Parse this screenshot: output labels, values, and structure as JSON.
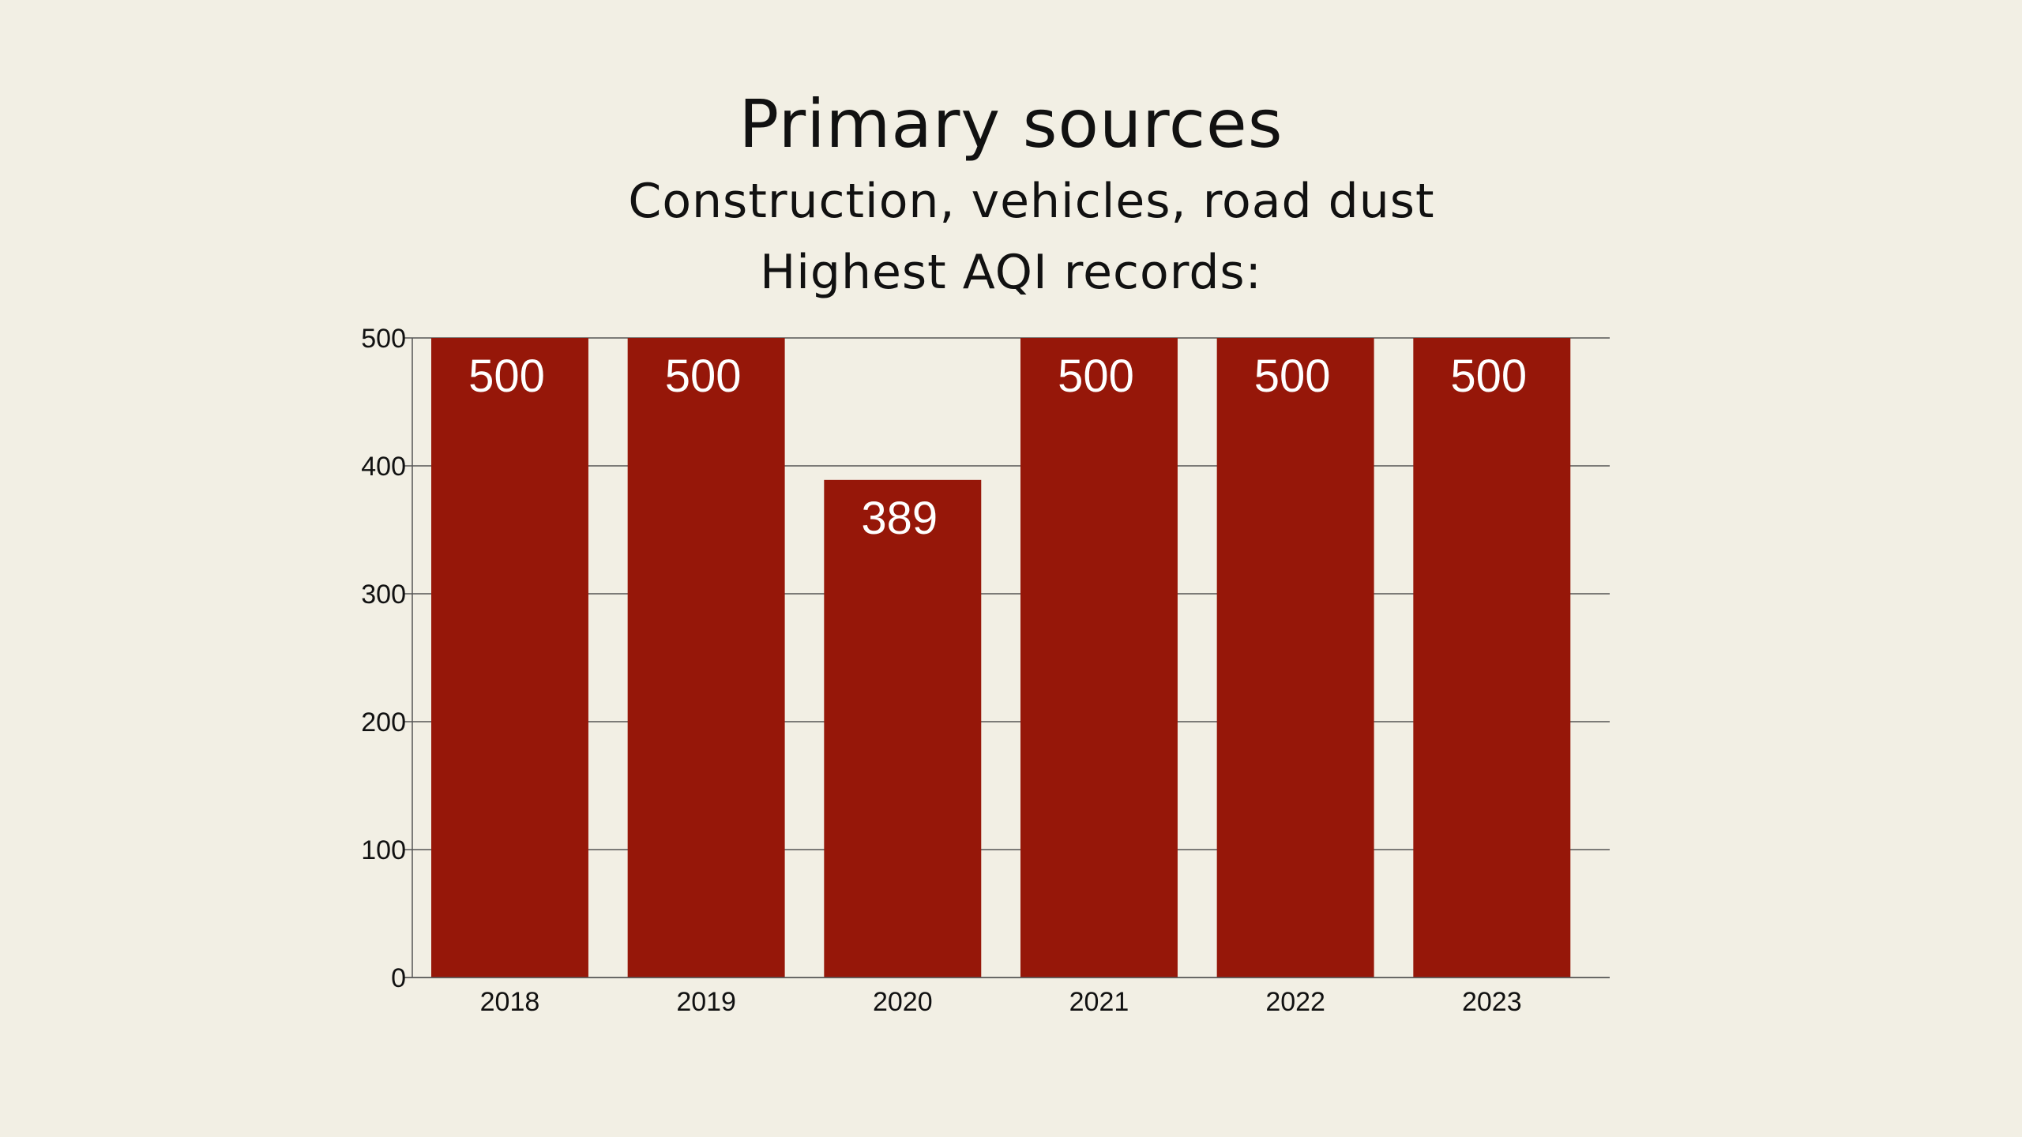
{
  "header": {
    "title": "Primary sources",
    "subtitle": "Construction, vehicles, road dust",
    "section_label": "Highest AQI records:"
  },
  "colors": {
    "background": "#f2efe4",
    "bar": "#961709",
    "gridline": "#555555",
    "bar_label": "#ffffff"
  },
  "chart_data": {
    "type": "bar",
    "title": "",
    "xlabel": "",
    "ylabel": "",
    "categories": [
      "2018",
      "2019",
      "2020",
      "2021",
      "2022",
      "2023"
    ],
    "values": [
      500,
      500,
      389,
      500,
      500,
      500
    ],
    "data_labels": [
      "500",
      "500",
      "389",
      "500",
      "500",
      "500"
    ],
    "ylim": [
      0,
      500
    ],
    "yticks": [
      0,
      100,
      200,
      300,
      400,
      500
    ],
    "grid": true,
    "legend": "none"
  }
}
